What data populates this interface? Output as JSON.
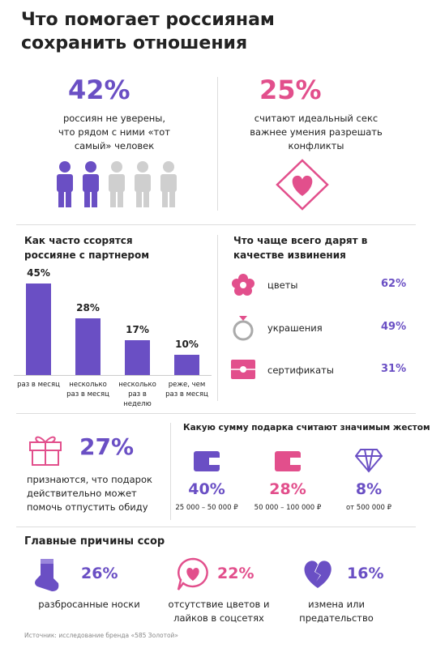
{
  "title": "Что помогает россиянам сохранить отношения",
  "uncertain": {
    "value": "42%",
    "text": "россиян не уверены, что рядом с ними «тот самый» человек"
  },
  "sex_vs_conflicts": {
    "value": "25%",
    "text": "считают идеальный секс важнее умения разрешать конфликты"
  },
  "chart_data": {
    "type": "bar",
    "title": "Как часто ссорятся россияне с партнером",
    "categories": [
      "раз в месяц",
      "несколько раз в месяц",
      "несколько раз в неделю",
      "реже, чем раз в месяц"
    ],
    "values": [
      45,
      28,
      17,
      10
    ],
    "value_labels": [
      "45%",
      "28%",
      "17%",
      "10%"
    ],
    "color": "#6a4fc4"
  },
  "apology_gifts": {
    "title": "Что чаще всего дарят в качестве извинения",
    "items": [
      {
        "label": "цветы",
        "value": "62%"
      },
      {
        "label": "украшения",
        "value": "49%"
      },
      {
        "label": "сертификаты",
        "value": "31%"
      }
    ]
  },
  "gift_forgiveness": {
    "value": "27%",
    "text": "признаются, что подарок действительно может помочь отпустить обиду"
  },
  "gift_amount": {
    "title": "Какую сумму подарка считают значимым жестом",
    "items": [
      {
        "value": "40%",
        "range": "25 000 – 50 000 ₽"
      },
      {
        "value": "28%",
        "range": "50 000 – 100 000 ₽"
      },
      {
        "value": "8%",
        "range": "от 500 000 ₽"
      }
    ]
  },
  "quarrel_reasons": {
    "title": "Главные причины ссор",
    "items": [
      {
        "value": "26%",
        "label": "разбросанные носки"
      },
      {
        "value": "22%",
        "label": "отсутствие цветов и лайков в соцсетях"
      },
      {
        "value": "16%",
        "label": "измена или предательство"
      }
    ]
  },
  "source": "Источник: исследование бренда «585 Золотой»"
}
